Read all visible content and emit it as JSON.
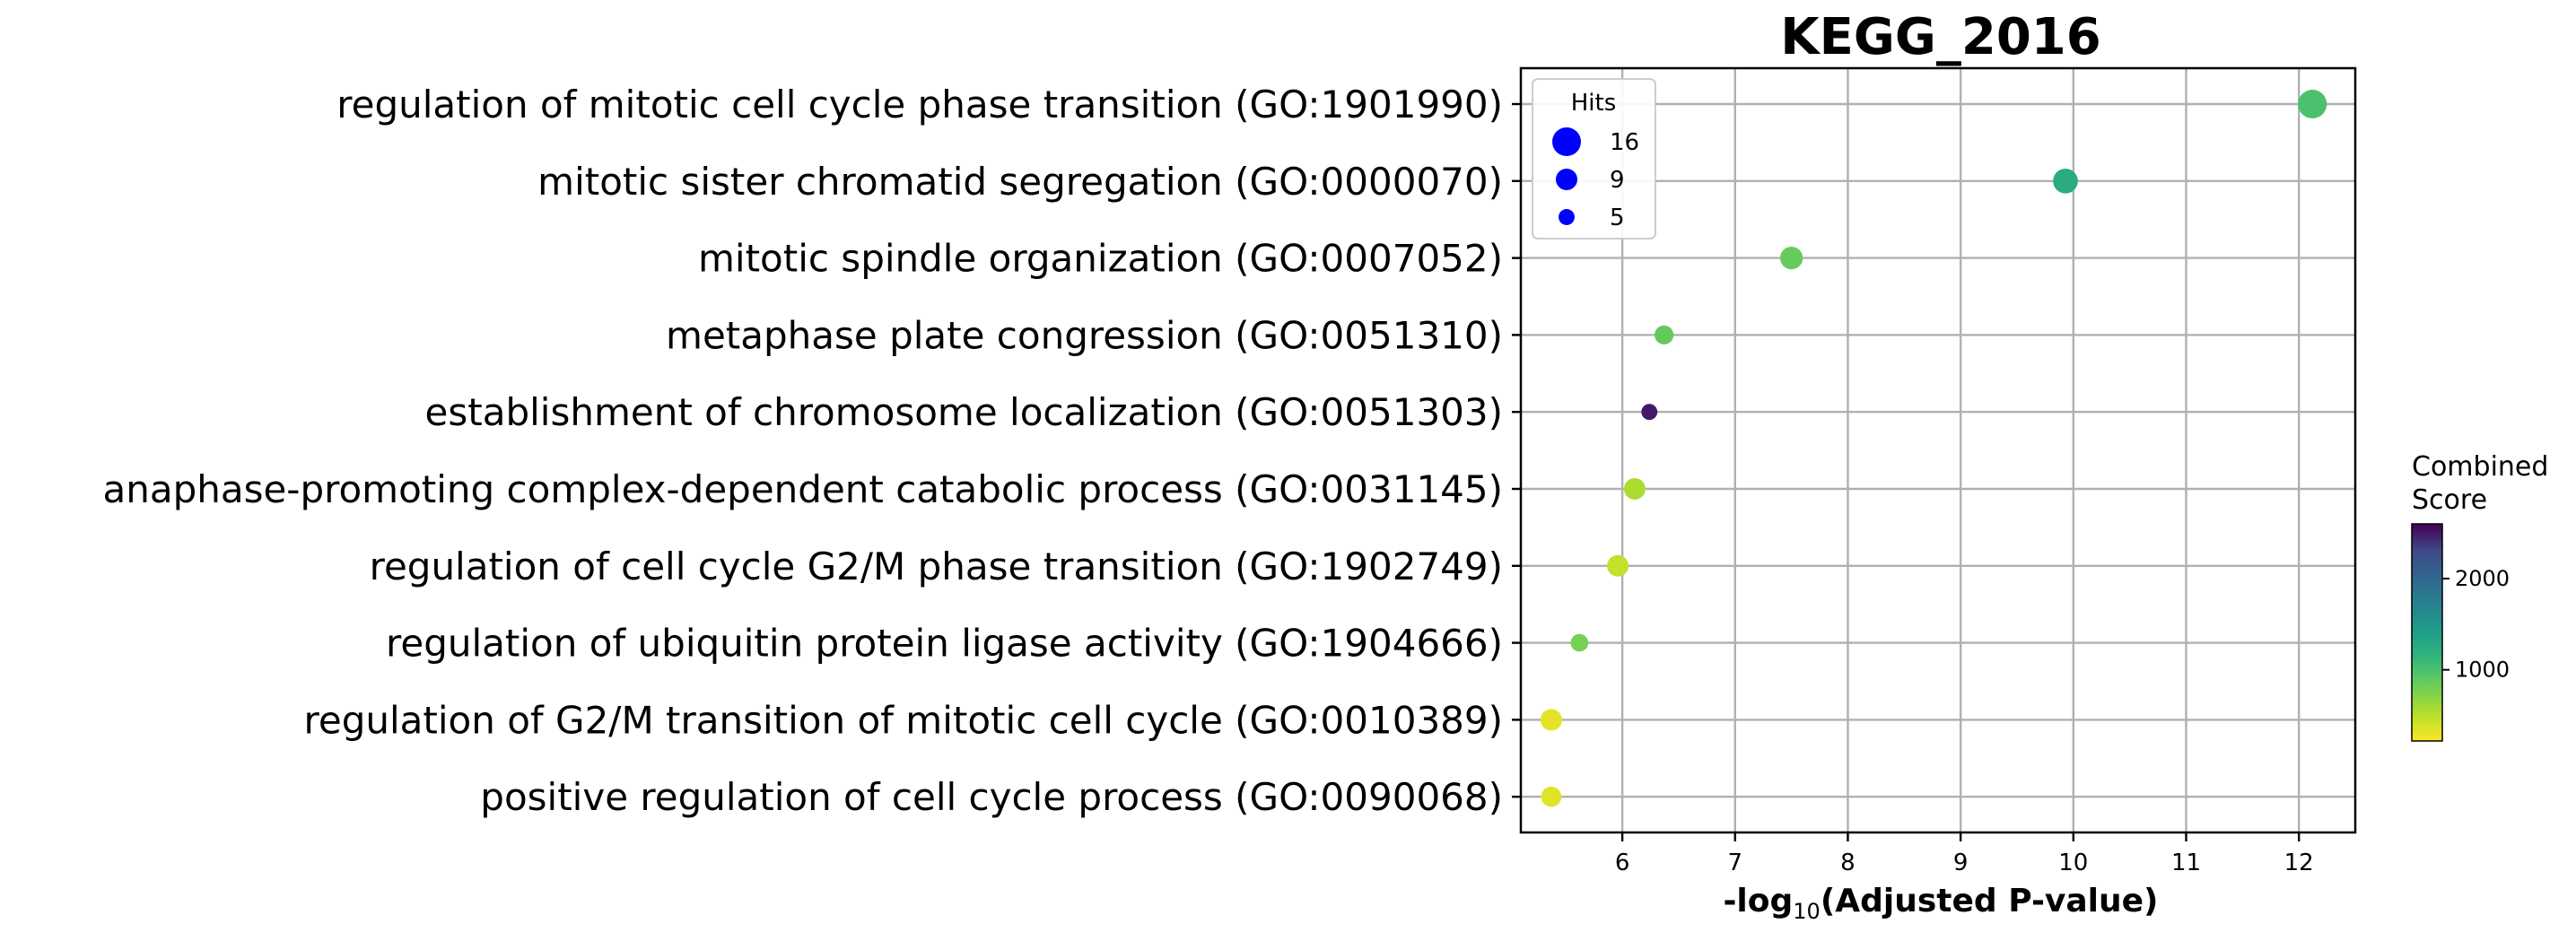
{
  "chart_data": {
    "type": "scatter",
    "title": "KEGG_2016",
    "xlabel_main": "-log",
    "xlabel_sub": "10",
    "xlabel_rest": "(Adjusted P-value)",
    "xlim": [
      5.1,
      12.5
    ],
    "xticks": [
      6,
      7,
      8,
      9,
      10,
      11,
      12
    ],
    "grid": true,
    "categories": [
      "regulation of mitotic cell cycle phase transition (GO:1901990)",
      "mitotic sister chromatid segregation (GO:0000070)",
      "mitotic spindle organization (GO:0007052)",
      "metaphase plate congression (GO:0051310)",
      "establishment of chromosome localization (GO:0051303)",
      "anaphase-promoting complex-dependent catabolic process (GO:0031145)",
      "regulation of cell cycle G2/M phase transition (GO:1902749)",
      "regulation of ubiquitin protein ligase activity (GO:1904666)",
      "regulation of G2/M transition of mitotic cell cycle (GO:0010389)",
      "positive regulation of cell cycle process (GO:0090068)"
    ],
    "points": [
      {
        "x": 12.12,
        "hits": 16,
        "score": 1000
      },
      {
        "x": 9.93,
        "hits": 12,
        "score": 1250
      },
      {
        "x": 7.5,
        "hits": 10,
        "score": 850
      },
      {
        "x": 6.37,
        "hits": 7,
        "score": 870
      },
      {
        "x": 6.24,
        "hits": 5,
        "score": 2500
      },
      {
        "x": 6.11,
        "hits": 9,
        "score": 550
      },
      {
        "x": 5.96,
        "hits": 9,
        "score": 450
      },
      {
        "x": 5.62,
        "hits": 6,
        "score": 780
      },
      {
        "x": 5.37,
        "hits": 9,
        "score": 330
      },
      {
        "x": 5.37,
        "hits": 8,
        "score": 340
      }
    ],
    "legend": {
      "title": "Hits",
      "placement": "top-left",
      "entries": [
        {
          "label": "16",
          "hits": 16
        },
        {
          "label": "9",
          "hits": 9
        },
        {
          "label": "5",
          "hits": 5
        }
      ],
      "color": "#0000ff"
    },
    "colorbar": {
      "title_line1": "Combined",
      "title_line2": "Score",
      "min": 220,
      "max": 2600,
      "ticks": [
        1000,
        2000
      ],
      "colormap": "viridis_r"
    }
  }
}
